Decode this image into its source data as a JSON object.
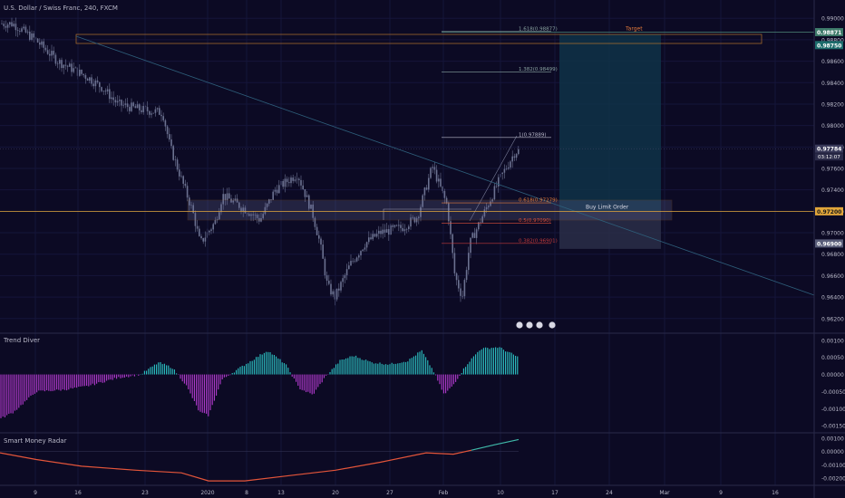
{
  "header": {
    "title": "U.S. Dollar / Swiss Franc, 240, FXCM"
  },
  "colors": {
    "background": "#0c0a24",
    "candle": "#6b7190",
    "target_line": "#4f8a7a",
    "entry_line": "#e0a53a",
    "bull_hist": "#2cc4c4",
    "bear_hist": "#b43ad0",
    "radar_down": "#e4553a",
    "radar_up": "#3fb8a8",
    "projection_fill": "#0f3348"
  },
  "chart_data": [
    {
      "type": "candlestick",
      "title": "U.S. Dollar / Swiss Franc, 240, FXCM",
      "ylim": [
        0.9608,
        0.9912
      ],
      "y_ticks": [
        "0.99000",
        "0.98800",
        "0.98600",
        "0.98400",
        "0.98200",
        "0.98000",
        "0.97800",
        "0.97600",
        "0.97400",
        "0.97200",
        "0.97000",
        "0.96800",
        "0.96600",
        "0.96400",
        "0.96200"
      ],
      "x_ticks": [
        "9",
        "16",
        "23",
        "2020",
        "8",
        "13",
        "20",
        "27",
        "Feb",
        "10",
        "17",
        "24",
        "Mar",
        "9",
        "16"
      ],
      "price_path": [
        {
          "x": "Dec 6",
          "y": 0.9895
        },
        {
          "x": "Dec 9",
          "y": 0.988
        },
        {
          "x": "Dec 12",
          "y": 0.986
        },
        {
          "x": "Dec 16",
          "y": 0.9845
        },
        {
          "x": "Dec 18",
          "y": 0.9835
        },
        {
          "x": "Dec 20",
          "y": 0.982
        },
        {
          "x": "Dec 23",
          "y": 0.9815
        },
        {
          "x": "Dec 26",
          "y": 0.9812
        },
        {
          "x": "Dec 27",
          "y": 0.978
        },
        {
          "x": "Dec 30",
          "y": 0.972
        },
        {
          "x": "Dec 31",
          "y": 0.969
        },
        {
          "x": "Jan 2",
          "y": 0.971
        },
        {
          "x": "Jan 3",
          "y": 0.9735
        },
        {
          "x": "Jan 6",
          "y": 0.9722
        },
        {
          "x": "Jan 8",
          "y": 0.9712
        },
        {
          "x": "Jan 10",
          "y": 0.974
        },
        {
          "x": "Jan 13",
          "y": 0.9755
        },
        {
          "x": "Jan 15",
          "y": 0.9718
        },
        {
          "x": "Jan 16",
          "y": 0.969
        },
        {
          "x": "Jan 17",
          "y": 0.965
        },
        {
          "x": "Jan 18",
          "y": 0.964
        },
        {
          "x": "Jan 20",
          "y": 0.967
        },
        {
          "x": "Jan 22",
          "y": 0.969
        },
        {
          "x": "Jan 24",
          "y": 0.97
        },
        {
          "x": "Jan 27",
          "y": 0.9705
        },
        {
          "x": "Jan 29",
          "y": 0.9715
        },
        {
          "x": "Jan 31",
          "y": 0.9762
        },
        {
          "x": "Feb 2",
          "y": 0.9725
        },
        {
          "x": "Feb 3",
          "y": 0.966
        },
        {
          "x": "Feb 4",
          "y": 0.964
        },
        {
          "x": "Feb 5",
          "y": 0.969
        },
        {
          "x": "Feb 7",
          "y": 0.972
        },
        {
          "x": "Feb 9",
          "y": 0.975
        },
        {
          "x": "Feb 11",
          "y": 0.9775
        },
        {
          "x": "Feb 12",
          "y": 0.9778
        }
      ],
      "fib_levels": [
        {
          "label": "1.618(0.98877)",
          "value": 0.98877
        },
        {
          "label": "1.382(0.98499)",
          "value": 0.98499
        },
        {
          "label": "1(0.97889)",
          "value": 0.97889
        },
        {
          "label": "0.618(0.97279)",
          "value": 0.97279
        },
        {
          "label": "0.5(0.97090)",
          "value": 0.9709
        },
        {
          "label": "0.382(0.96901)",
          "value": 0.96901
        }
      ],
      "annotations": {
        "target_label": "Target",
        "entry_label": "Buy Limit Order",
        "target_price": "0.98871",
        "stop_price": "0.98750",
        "entry_price": "0.97200",
        "current_price": "0.97784",
        "countdown": "03:12:07",
        "lower_price": "0.96900"
      }
    },
    {
      "type": "bar",
      "title": "Trend Diver",
      "ylim": [
        -0.0016,
        0.0011
      ],
      "y_ticks": [
        "0.00100",
        "0.00050",
        "0.00000",
        "-0.00050",
        "-0.00100",
        "-0.00150"
      ]
    },
    {
      "type": "line",
      "title": "Smart Money Radar",
      "ylim": [
        -0.0024,
        0.0012
      ],
      "y_ticks": [
        "0.00100",
        "0.00000",
        "-0.00100",
        "-0.00200"
      ]
    }
  ]
}
